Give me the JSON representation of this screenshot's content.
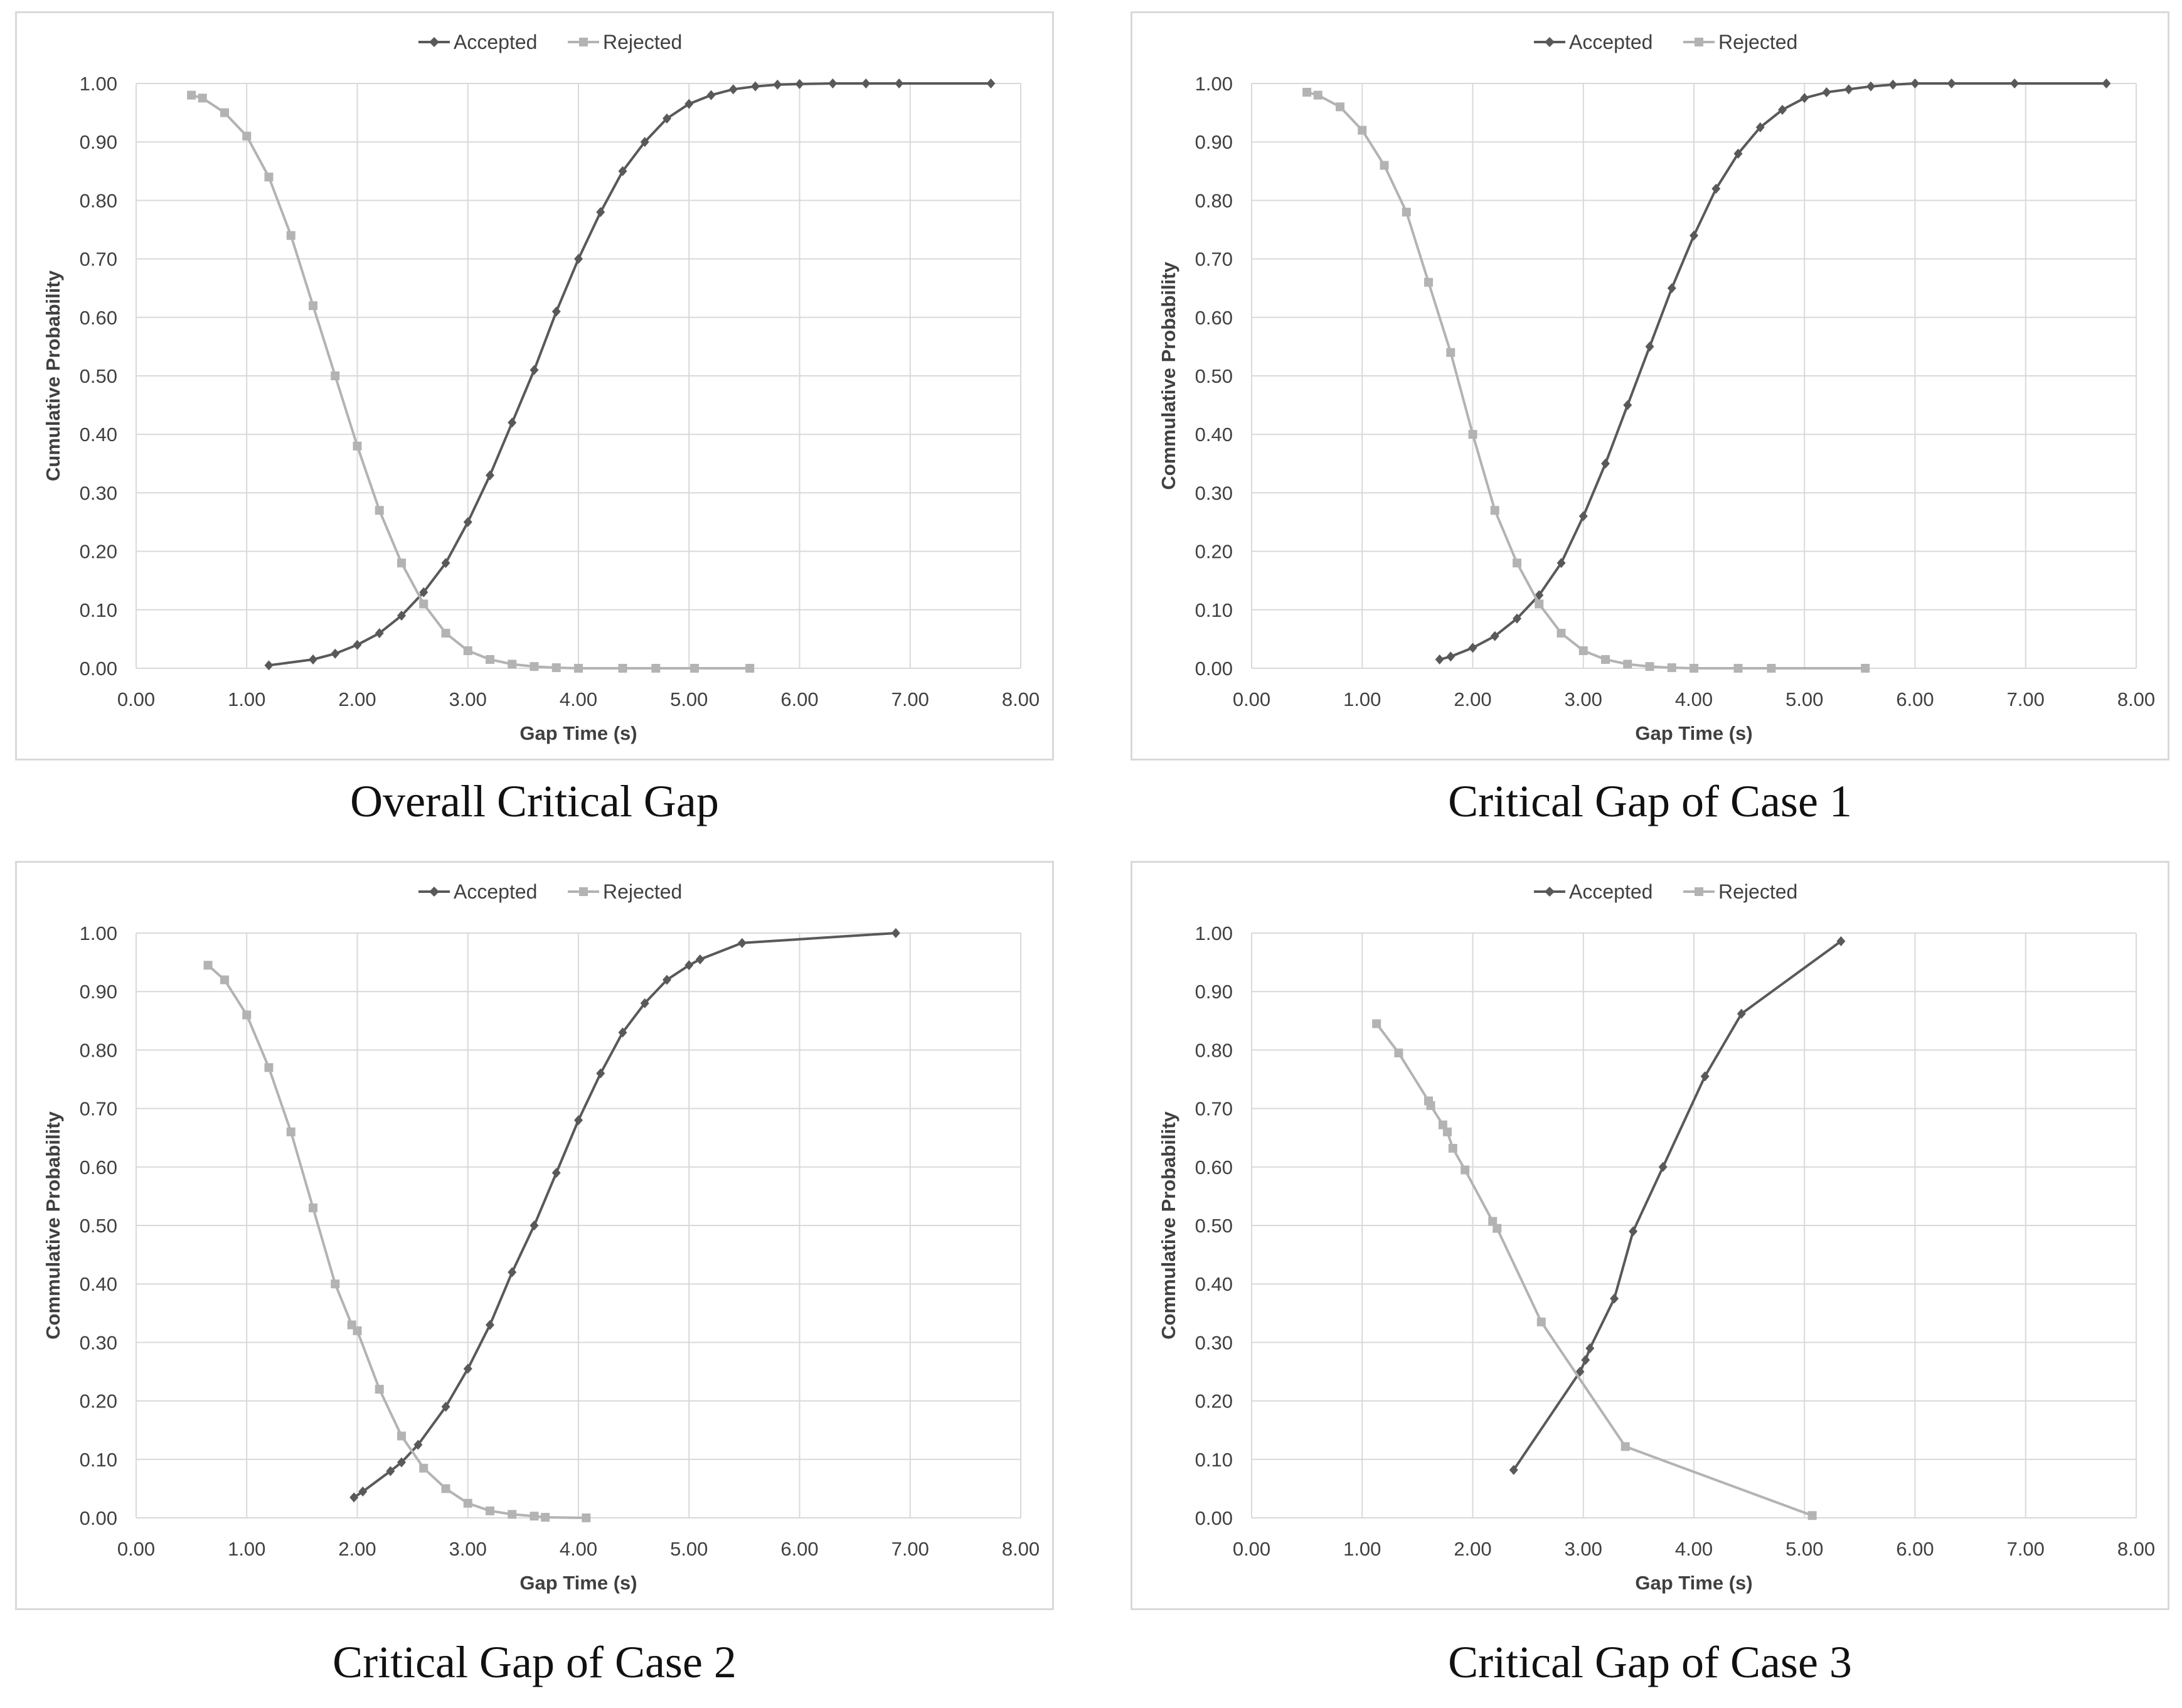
{
  "legend": {
    "accepted": "Accepted",
    "rejected": "Rejected"
  },
  "colors": {
    "accepted": "#595959",
    "rejected": "#b3b3b3",
    "grid": "#d9d9d9",
    "text": "#404040"
  },
  "chart_data": [
    {
      "type": "line",
      "caption": "Overall Critical Gap",
      "xlabel": "Gap Time (s)",
      "ylabel": "Cumulative Probability",
      "xlim": [
        0,
        8
      ],
      "ylim": [
        0,
        1
      ],
      "x_ticks": [
        "0.00",
        "1.00",
        "2.00",
        "3.00",
        "4.00",
        "5.00",
        "6.00",
        "7.00",
        "8.00"
      ],
      "y_ticks": [
        "0.00",
        "0.10",
        "0.20",
        "0.30",
        "0.40",
        "0.50",
        "0.60",
        "0.70",
        "0.80",
        "0.90",
        "1.00"
      ],
      "series": [
        {
          "name": "Accepted",
          "x": [
            1.2,
            1.6,
            1.8,
            2.0,
            2.2,
            2.4,
            2.6,
            2.8,
            3.0,
            3.2,
            3.4,
            3.6,
            3.8,
            4.0,
            4.2,
            4.4,
            4.6,
            4.8,
            5.0,
            5.2,
            5.4,
            5.6,
            5.8,
            6.0,
            6.3,
            6.6,
            6.9,
            7.73
          ],
          "y": [
            0.005,
            0.015,
            0.025,
            0.04,
            0.06,
            0.09,
            0.13,
            0.18,
            0.25,
            0.33,
            0.42,
            0.51,
            0.61,
            0.7,
            0.78,
            0.85,
            0.9,
            0.94,
            0.965,
            0.98,
            0.99,
            0.995,
            0.998,
            0.999,
            1.0,
            1.0,
            1.0,
            1.0
          ]
        },
        {
          "name": "Rejected",
          "x": [
            0.5,
            0.6,
            0.8,
            1.0,
            1.2,
            1.4,
            1.6,
            1.8,
            2.0,
            2.2,
            2.4,
            2.6,
            2.8,
            3.0,
            3.2,
            3.4,
            3.6,
            3.8,
            4.0,
            4.4,
            4.7,
            5.05,
            5.55
          ],
          "y": [
            0.98,
            0.975,
            0.95,
            0.91,
            0.84,
            0.74,
            0.62,
            0.5,
            0.38,
            0.27,
            0.18,
            0.11,
            0.06,
            0.03,
            0.015,
            0.007,
            0.003,
            0.001,
            0.0,
            0.0,
            0.0,
            0.0,
            0.0
          ]
        }
      ]
    },
    {
      "type": "line",
      "caption": "Critical Gap of Case 1",
      "xlabel": "Gap Time (s)",
      "ylabel": "Commulative Probability",
      "xlim": [
        0,
        8
      ],
      "ylim": [
        0,
        1
      ],
      "x_ticks": [
        "0.00",
        "1.00",
        "2.00",
        "3.00",
        "4.00",
        "5.00",
        "6.00",
        "7.00",
        "8.00"
      ],
      "y_ticks": [
        "0.00",
        "0.10",
        "0.20",
        "0.30",
        "0.40",
        "0.50",
        "0.60",
        "0.70",
        "0.80",
        "0.90",
        "1.00"
      ],
      "series": [
        {
          "name": "Accepted",
          "x": [
            1.7,
            1.8,
            2.0,
            2.2,
            2.4,
            2.6,
            2.8,
            3.0,
            3.2,
            3.4,
            3.6,
            3.8,
            4.0,
            4.2,
            4.4,
            4.6,
            4.8,
            5.0,
            5.2,
            5.4,
            5.6,
            5.8,
            6.0,
            6.33,
            6.9,
            7.73
          ],
          "y": [
            0.015,
            0.02,
            0.035,
            0.055,
            0.085,
            0.125,
            0.18,
            0.26,
            0.35,
            0.45,
            0.55,
            0.65,
            0.74,
            0.82,
            0.88,
            0.925,
            0.955,
            0.975,
            0.985,
            0.99,
            0.995,
            0.998,
            1.0,
            1.0,
            1.0,
            1.0
          ]
        },
        {
          "name": "Rejected",
          "x": [
            0.5,
            0.6,
            0.8,
            1.0,
            1.2,
            1.4,
            1.6,
            1.8,
            2.0,
            2.2,
            2.4,
            2.6,
            2.8,
            3.0,
            3.2,
            3.4,
            3.6,
            3.8,
            4.0,
            4.4,
            4.7,
            5.55
          ],
          "y": [
            0.985,
            0.98,
            0.96,
            0.92,
            0.86,
            0.78,
            0.66,
            0.54,
            0.4,
            0.27,
            0.18,
            0.11,
            0.06,
            0.03,
            0.015,
            0.007,
            0.003,
            0.001,
            0.0,
            0.0,
            0.0,
            0.0
          ]
        }
      ]
    },
    {
      "type": "line",
      "caption": "Critical Gap of Case 2",
      "xlabel": "Gap Time (s)",
      "ylabel": "Commulative Probability",
      "xlim": [
        0,
        8
      ],
      "ylim": [
        0,
        1
      ],
      "x_ticks": [
        "0.00",
        "1.00",
        "2.00",
        "3.00",
        "4.00",
        "5.00",
        "6.00",
        "7.00",
        "8.00"
      ],
      "y_ticks": [
        "0.00",
        "0.10",
        "0.20",
        "0.30",
        "0.40",
        "0.50",
        "0.60",
        "0.70",
        "0.80",
        "0.90",
        "1.00"
      ],
      "series": [
        {
          "name": "Accepted",
          "x": [
            1.97,
            2.05,
            2.3,
            2.4,
            2.55,
            2.8,
            3.0,
            3.2,
            3.4,
            3.6,
            3.8,
            4.0,
            4.2,
            4.4,
            4.6,
            4.8,
            5.0,
            5.1,
            5.48,
            6.87
          ],
          "y": [
            0.035,
            0.045,
            0.08,
            0.095,
            0.125,
            0.19,
            0.255,
            0.33,
            0.42,
            0.5,
            0.59,
            0.68,
            0.76,
            0.83,
            0.88,
            0.92,
            0.945,
            0.955,
            0.983,
            1.0
          ]
        },
        {
          "name": "Rejected",
          "x": [
            0.65,
            0.8,
            1.0,
            1.2,
            1.4,
            1.6,
            1.8,
            1.95,
            2.0,
            2.2,
            2.4,
            2.6,
            2.8,
            3.0,
            3.2,
            3.4,
            3.6,
            3.7,
            4.07
          ],
          "y": [
            0.945,
            0.92,
            0.86,
            0.77,
            0.66,
            0.53,
            0.4,
            0.33,
            0.32,
            0.22,
            0.14,
            0.085,
            0.05,
            0.025,
            0.012,
            0.006,
            0.003,
            0.001,
            0.0
          ]
        }
      ]
    },
    {
      "type": "line",
      "caption": "Critical Gap of Case 3",
      "xlabel": "Gap Time (s)",
      "ylabel": "Commulative Probability",
      "xlim": [
        0,
        8
      ],
      "ylim": [
        0,
        1
      ],
      "x_ticks": [
        "0.00",
        "1.00",
        "2.00",
        "3.00",
        "4.00",
        "5.00",
        "6.00",
        "7.00",
        "8.00"
      ],
      "y_ticks": [
        "0.00",
        "0.10",
        "0.20",
        "0.30",
        "0.40",
        "0.50",
        "0.60",
        "0.70",
        "0.80",
        "0.90",
        "1.00"
      ],
      "series": [
        {
          "name": "Accepted",
          "x": [
            2.37,
            2.97,
            3.02,
            3.06,
            3.28,
            3.45,
            3.72,
            4.1,
            4.43,
            5.33
          ],
          "y": [
            0.082,
            0.25,
            0.27,
            0.29,
            0.375,
            0.49,
            0.6,
            0.755,
            0.862,
            0.986
          ]
        },
        {
          "name": "Rejected",
          "x": [
            1.13,
            1.33,
            1.6,
            1.62,
            1.73,
            1.77,
            1.82,
            1.93,
            2.18,
            2.22,
            2.62,
            3.38,
            5.07
          ],
          "y": [
            0.845,
            0.795,
            0.713,
            0.705,
            0.672,
            0.66,
            0.632,
            0.595,
            0.507,
            0.495,
            0.335,
            0.122,
            0.004
          ]
        }
      ]
    }
  ]
}
